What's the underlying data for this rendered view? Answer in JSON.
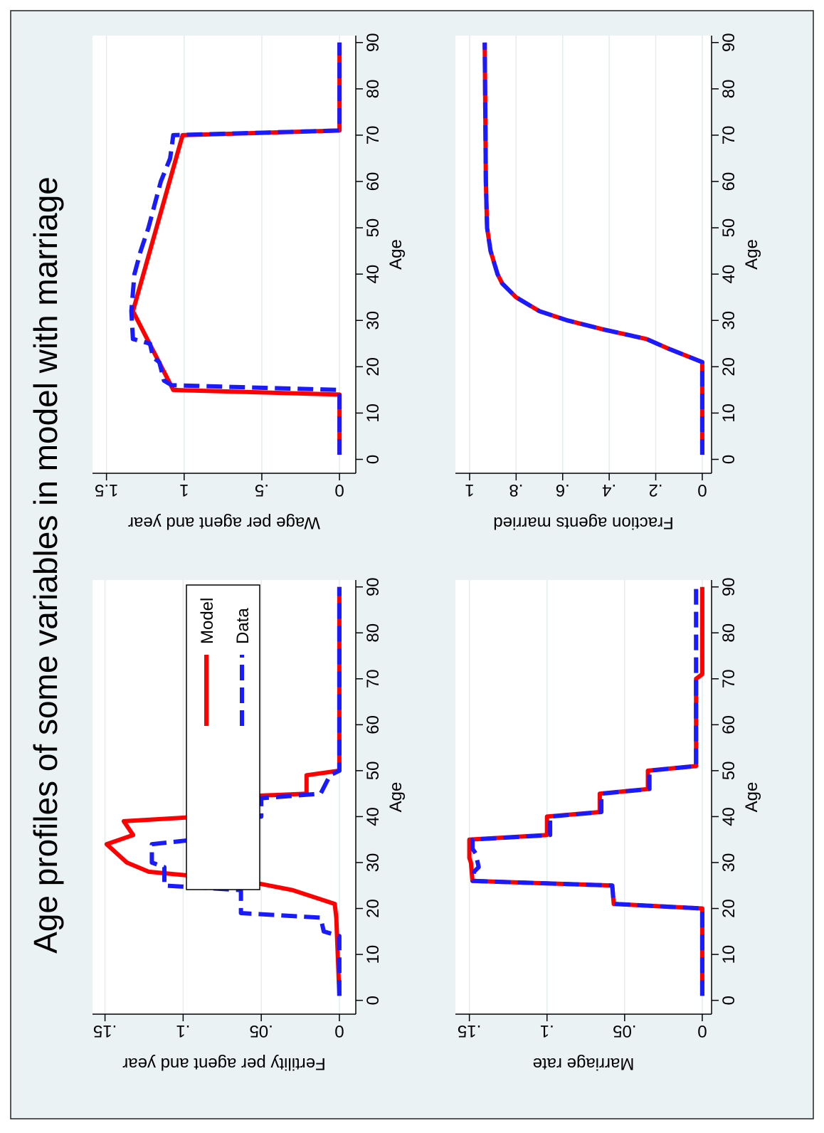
{
  "title": "Age profiles of some variables in model with marriage",
  "chart_data": [
    {
      "type": "line",
      "xlabel": "Age",
      "ylabel": "Fertility per agent and year",
      "xlim": [
        -3,
        91.5
      ],
      "ylim": [
        -0.0105,
        0.158
      ],
      "xticks": [
        0,
        10,
        20,
        30,
        40,
        50,
        60,
        70,
        80,
        90
      ],
      "yticks": [
        0,
        {
          "value": 0.05,
          "label": ".05"
        },
        {
          "value": 0.1,
          "label": ".1"
        },
        {
          "value": 0.15,
          "label": ".15"
        }
      ],
      "grid": true,
      "legend": "top-right",
      "series": [
        {
          "name": "Model",
          "color": "#ff0000",
          "style": "solid",
          "x": [
            1,
            18,
            21,
            24,
            26,
            28,
            30,
            34,
            36,
            39,
            40,
            44,
            45,
            49,
            50,
            90
          ],
          "values": [
            0,
            0.002,
            0.003,
            0.03,
            0.06,
            0.122,
            0.136,
            0.149,
            0.132,
            0.138,
            0.088,
            0.089,
            0.021,
            0.021,
            0,
            0
          ]
        },
        {
          "name": "Data",
          "color": "#1a1aff",
          "style": "dashed",
          "x": [
            1,
            14,
            15,
            18,
            19,
            24,
            25,
            29,
            30,
            34,
            35,
            39,
            40,
            44,
            45,
            49,
            50,
            90
          ],
          "values": [
            0,
            0,
            0.01,
            0.012,
            0.063,
            0.063,
            0.112,
            0.112,
            0.12,
            0.12,
            0.092,
            0.09,
            0.05,
            0.05,
            0.012,
            0.006,
            0,
            0
          ]
        }
      ]
    },
    {
      "type": "line",
      "xlabel": "Age",
      "ylabel": "Wage per agent and year",
      "xlim": [
        -3,
        91.5
      ],
      "ylim": [
        -0.105,
        1.59
      ],
      "xticks": [
        0,
        10,
        20,
        30,
        40,
        50,
        60,
        70,
        80,
        90
      ],
      "yticks": [
        0,
        {
          "value": 0.5,
          "label": ".5"
        },
        1,
        1.5
      ],
      "grid": true,
      "series": [
        {
          "color": "#ff0000",
          "style": "solid",
          "x": [
            1,
            14,
            15,
            32,
            70,
            71,
            90
          ],
          "values": [
            0,
            0,
            1.07,
            1.33,
            1.01,
            0,
            0
          ]
        },
        {
          "color": "#1a1aff",
          "style": "dashed",
          "x": [
            1,
            15,
            16,
            17,
            21,
            22,
            25,
            26,
            32,
            40,
            45,
            50,
            55,
            60,
            65,
            70,
            71,
            90
          ],
          "values": [
            0,
            0,
            1.08,
            1.13,
            1.16,
            1.2,
            1.22,
            1.33,
            1.34,
            1.32,
            1.28,
            1.23,
            1.19,
            1.15,
            1.09,
            1.07,
            0,
            0
          ]
        }
      ]
    },
    {
      "type": "line",
      "xlabel": "Age",
      "ylabel": "Marriage rate",
      "xlim": [
        -3,
        91.5
      ],
      "ylim": [
        -0.006,
        0.159
      ],
      "xticks": [
        0,
        10,
        20,
        30,
        40,
        50,
        60,
        70,
        80,
        90
      ],
      "yticks": [
        0,
        {
          "value": 0.05,
          "label": ".05"
        },
        {
          "value": 0.1,
          "label": ".1"
        },
        {
          "value": 0.15,
          "label": ".15"
        }
      ],
      "grid": true,
      "series": [
        {
          "color": "#ff0000",
          "style": "solid",
          "x": [
            1,
            20,
            21,
            25,
            26,
            30,
            31,
            35,
            36,
            40,
            41,
            45,
            46,
            50,
            51,
            70,
            71,
            90
          ],
          "values": [
            0,
            0,
            0.057,
            0.058,
            0.148,
            0.149,
            0.15,
            0.15,
            0.1,
            0.1,
            0.066,
            0.066,
            0.035,
            0.035,
            0.004,
            0.004,
            0,
            0
          ]
        },
        {
          "color": "#1a1aff",
          "style": "dashed",
          "x": [
            1,
            20,
            21,
            25,
            26,
            28,
            29,
            32,
            33,
            35,
            36,
            40,
            41,
            45,
            46,
            50,
            51,
            90
          ],
          "values": [
            0,
            0,
            0.057,
            0.058,
            0.148,
            0.147,
            0.144,
            0.146,
            0.148,
            0.148,
            0.098,
            0.098,
            0.065,
            0.065,
            0.034,
            0.034,
            0.004,
            0.004
          ]
        }
      ]
    },
    {
      "type": "line",
      "xlabel": "Age",
      "ylabel": "Fraction agents married",
      "xlim": [
        -3,
        91.5
      ],
      "ylim": [
        -0.04,
        1.061
      ],
      "xticks": [
        0,
        10,
        20,
        30,
        40,
        50,
        60,
        70,
        80,
        90
      ],
      "yticks": [
        0,
        {
          "value": 0.2,
          "label": ".2"
        },
        {
          "value": 0.4,
          "label": ".4"
        },
        {
          "value": 0.6,
          "label": ".6"
        },
        {
          "value": 0.8,
          "label": ".8"
        },
        1
      ],
      "grid": true,
      "series": [
        {
          "color": "#ff0000",
          "style": "solid",
          "x": [
            1,
            21,
            24,
            26,
            28,
            30,
            32,
            35,
            38,
            40,
            45,
            50,
            60,
            90
          ],
          "values": [
            0,
            0,
            0.15,
            0.24,
            0.42,
            0.58,
            0.7,
            0.8,
            0.86,
            0.88,
            0.91,
            0.925,
            0.93,
            0.935
          ]
        },
        {
          "color": "#1a1aff",
          "style": "dashed",
          "x": [
            1,
            21,
            24,
            26,
            28,
            30,
            32,
            35,
            38,
            40,
            45,
            50,
            60,
            90
          ],
          "values": [
            0,
            0,
            0.15,
            0.24,
            0.42,
            0.58,
            0.7,
            0.8,
            0.86,
            0.88,
            0.91,
            0.925,
            0.93,
            0.935
          ]
        }
      ]
    }
  ]
}
